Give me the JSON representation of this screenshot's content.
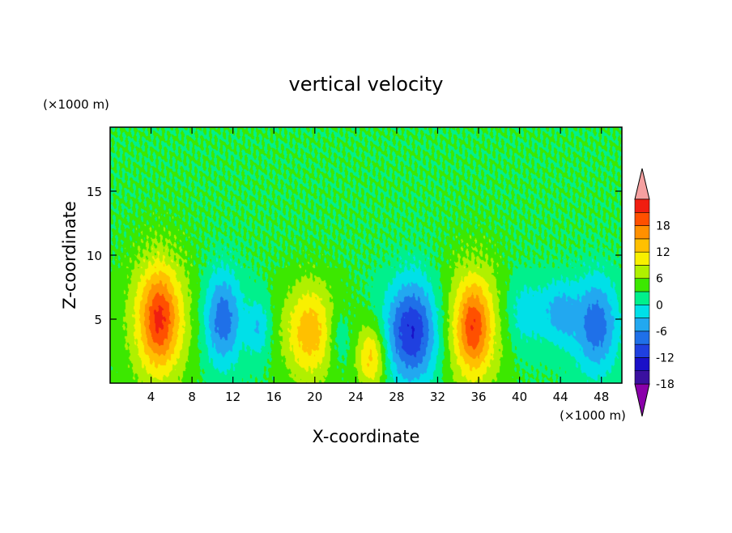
{
  "chart_data": {
    "type": "heatmap",
    "title": "vertical velocity",
    "xlabel": "X-coordinate",
    "ylabel": "Z-coordinate",
    "x_unit": "(×1000 m)",
    "y_unit": "(×1000 m)",
    "xlim": [
      0,
      50
    ],
    "ylim": [
      0,
      20
    ],
    "x_ticks": [
      4,
      8,
      12,
      16,
      20,
      24,
      28,
      32,
      36,
      40,
      44,
      48
    ],
    "y_ticks": [
      5,
      10,
      15
    ],
    "colorbar": {
      "labels": [
        "18",
        "12",
        "6",
        "0",
        "-6",
        "-12",
        "-18"
      ],
      "label_values": [
        18,
        12,
        6,
        0,
        -6,
        -12,
        -18
      ],
      "levels": [
        -21,
        -18,
        -15,
        -12,
        -9,
        -6,
        -3,
        0,
        3,
        6,
        9,
        12,
        15,
        18,
        21
      ],
      "colors": [
        "#8a00aa",
        "#3a10a0",
        "#1a10c8",
        "#1f40e0",
        "#1f70e8",
        "#22a8f0",
        "#00e0e8",
        "#00f08c",
        "#3ce800",
        "#b0f000",
        "#f8f000",
        "#ffc000",
        "#ff9000",
        "#ff5000",
        "#f01e10",
        "#f5a0a0"
      ],
      "extend": "both"
    },
    "features": [
      {
        "x": 4.8,
        "z": 5.0,
        "w": 9.0,
        "sx": 2.2,
        "sz": 3.8
      },
      {
        "x": 4.8,
        "z": 5.0,
        "w": 10.0,
        "sx": 1.2,
        "sz": 2.5
      },
      {
        "x": 11.0,
        "z": 5.0,
        "w": -11.0,
        "sx": 1.3,
        "sz": 2.6
      },
      {
        "x": 14.5,
        "z": 4.3,
        "w": -6.0,
        "sx": 0.8,
        "sz": 1.6
      },
      {
        "x": 19.5,
        "z": 4.0,
        "w": 11.0,
        "sx": 1.8,
        "sz": 2.7
      },
      {
        "x": 22.3,
        "z": 3.5,
        "w": -4.0,
        "sx": 0.8,
        "sz": 1.6
      },
      {
        "x": 25.5,
        "z": 2.0,
        "w": 10.0,
        "sx": 1.0,
        "sz": 1.8
      },
      {
        "x": 29.5,
        "z": 4.0,
        "w": -15.0,
        "sx": 1.8,
        "sz": 2.8
      },
      {
        "x": 35.5,
        "z": 4.5,
        "w": 10.0,
        "sx": 2.0,
        "sz": 3.5
      },
      {
        "x": 35.5,
        "z": 4.3,
        "w": 8.0,
        "sx": 1.0,
        "sz": 2.2
      },
      {
        "x": 40.5,
        "z": 5.5,
        "w": -5.0,
        "sx": 1.5,
        "sz": 2.0
      },
      {
        "x": 44.0,
        "z": 5.5,
        "w": -7.0,
        "sx": 1.2,
        "sz": 1.8
      },
      {
        "x": 47.5,
        "z": 4.5,
        "w": -11.0,
        "sx": 1.5,
        "sz": 2.6
      }
    ]
  }
}
